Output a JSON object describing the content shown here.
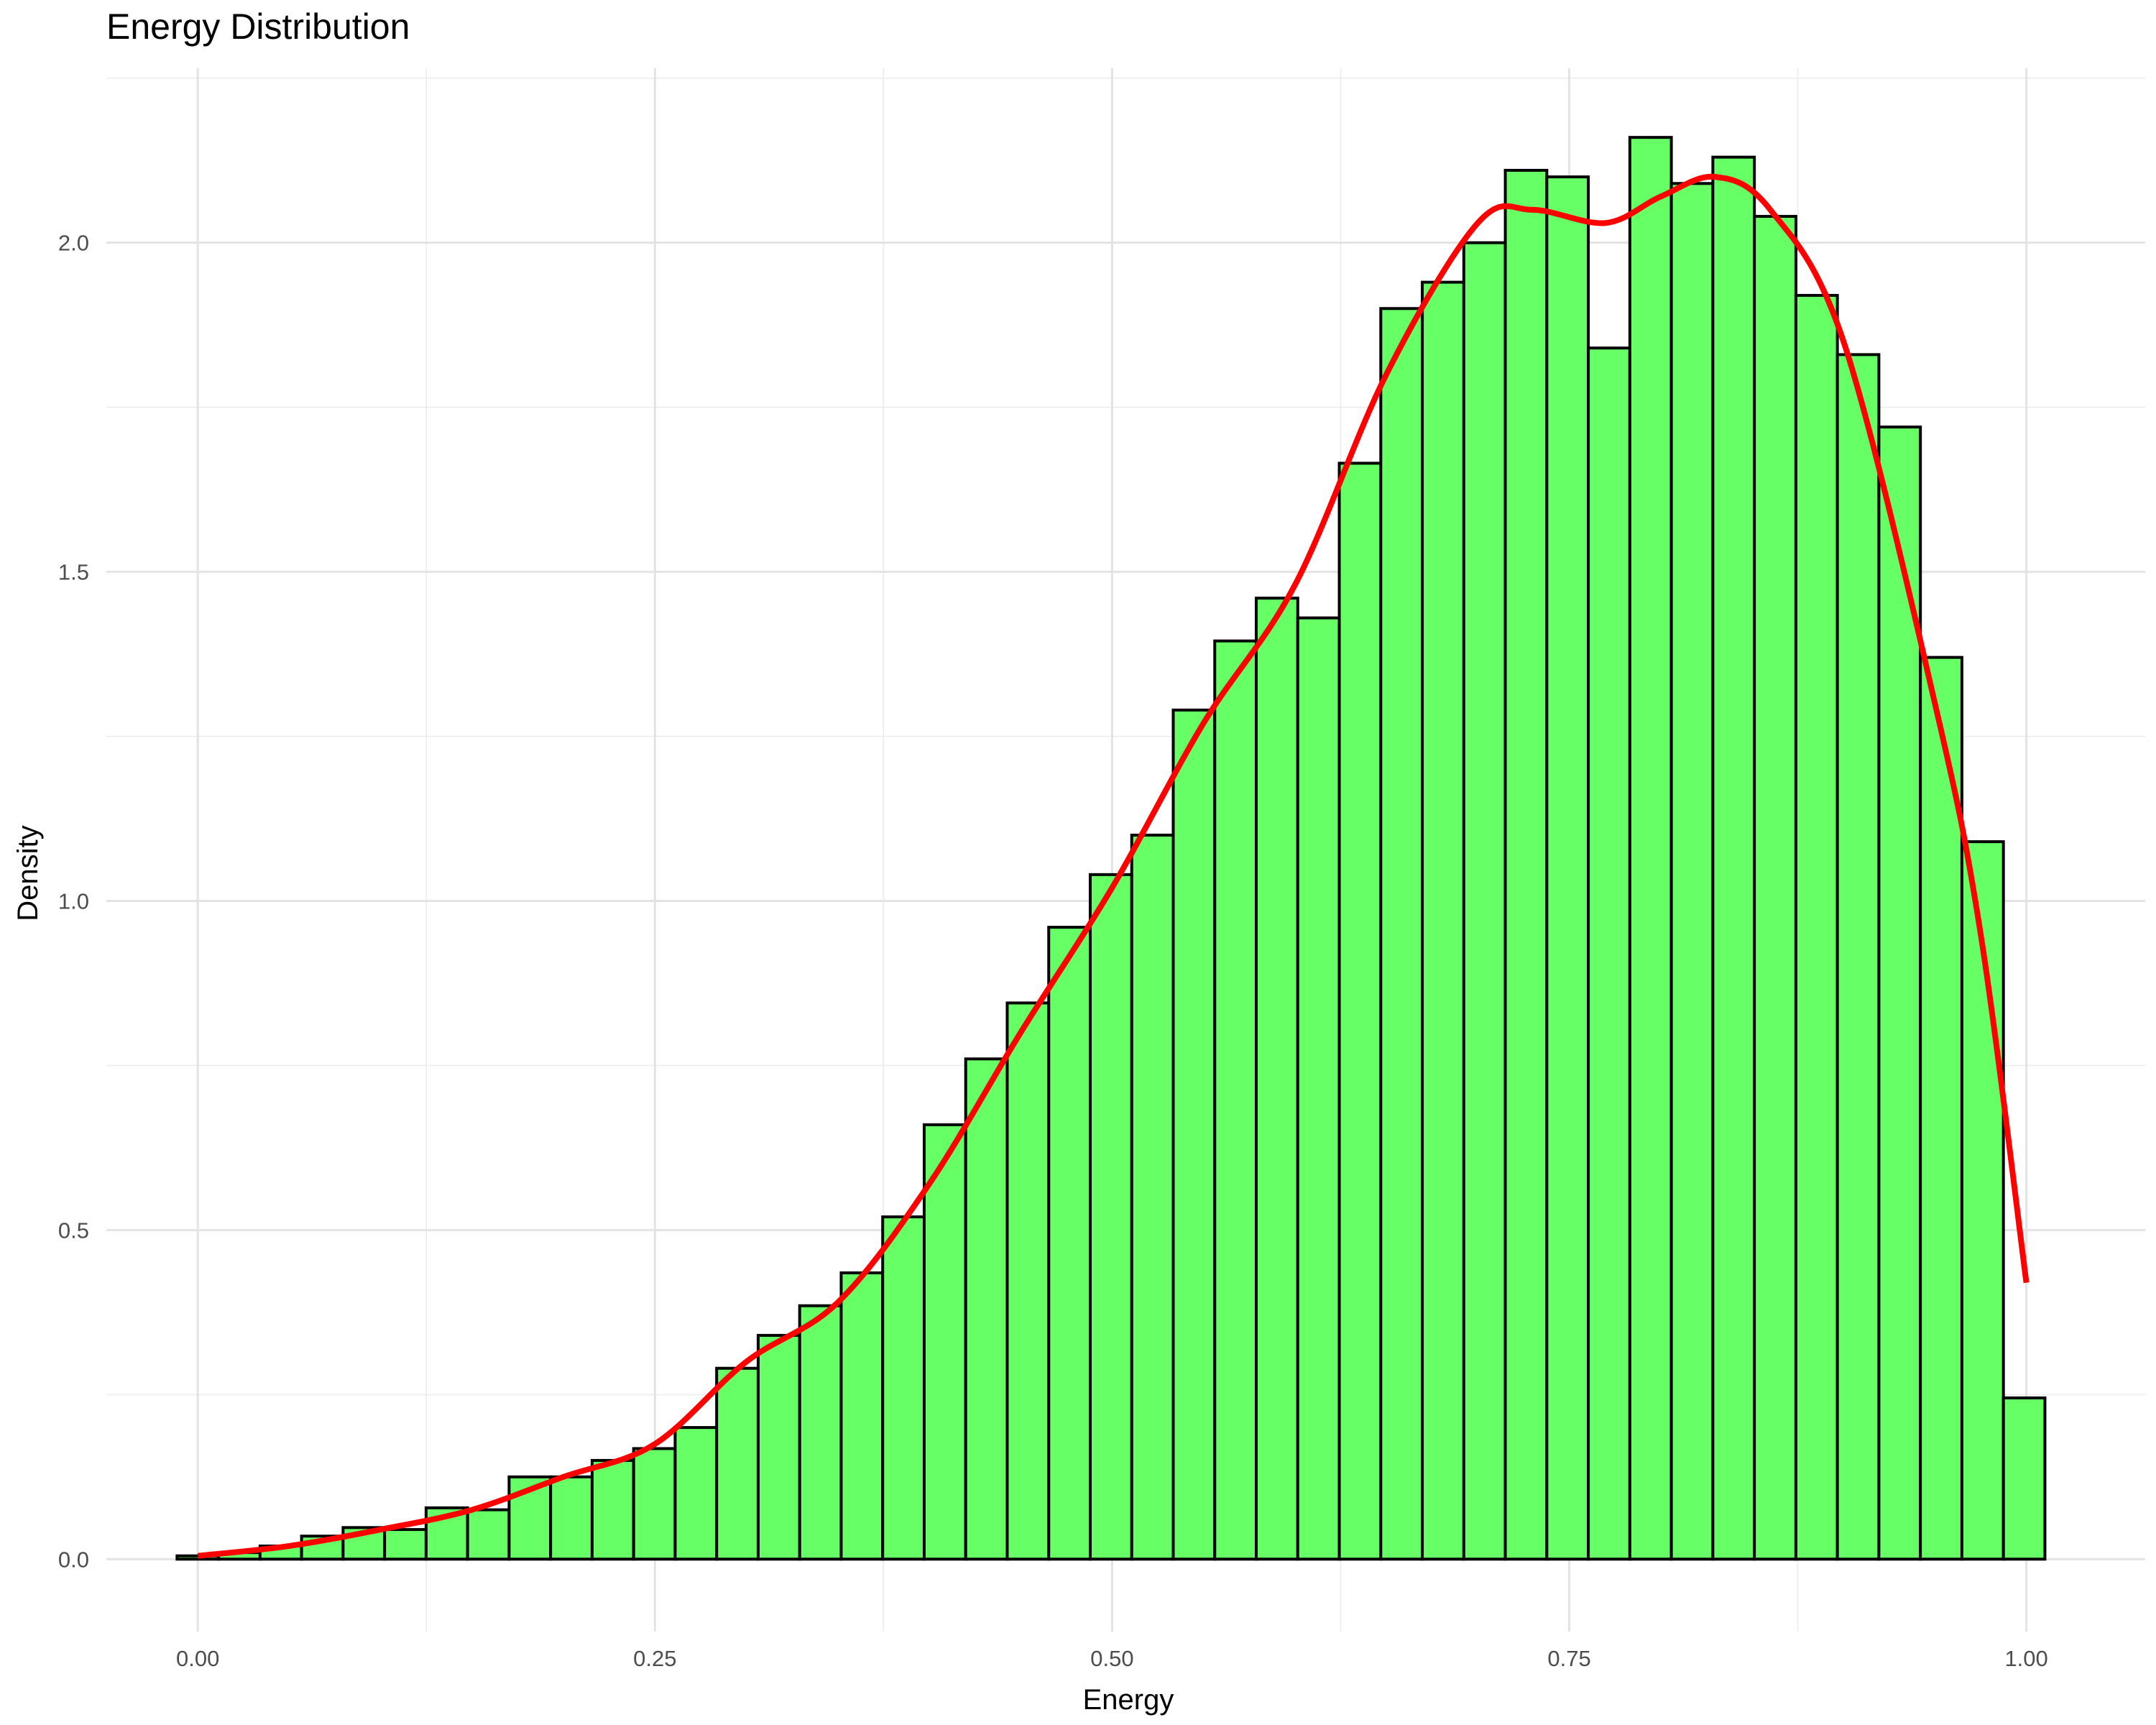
{
  "chart_data": {
    "type": "bar",
    "title": "Energy Distribution",
    "xlabel": "Energy",
    "ylabel": "Density",
    "xlim": [
      -0.05,
      1.065
    ],
    "ylim": [
      -0.11,
      2.265
    ],
    "x_ticks": [
      {
        "value": 0.0,
        "label": "0.00"
      },
      {
        "value": 0.25,
        "label": "0.25"
      },
      {
        "value": 0.5,
        "label": "0.50"
      },
      {
        "value": 0.75,
        "label": "0.75"
      },
      {
        "value": 1.0,
        "label": "1.00"
      }
    ],
    "y_ticks": [
      {
        "value": 0.0,
        "label": "0.0"
      },
      {
        "value": 0.5,
        "label": "0.5"
      },
      {
        "value": 1.0,
        "label": "1.0"
      },
      {
        "value": 1.5,
        "label": "1.5"
      },
      {
        "value": 2.0,
        "label": "2.0"
      }
    ],
    "grid": true,
    "histogram": {
      "first_bin_center": 0.0,
      "bin_width": 0.0227,
      "fill_color": "#66ff66",
      "edge_color": "#000000",
      "values": [
        0.005,
        0.01,
        0.02,
        0.035,
        0.048,
        0.045,
        0.078,
        0.075,
        0.125,
        0.125,
        0.15,
        0.168,
        0.2,
        0.29,
        0.34,
        0.385,
        0.435,
        0.52,
        0.66,
        0.76,
        0.845,
        0.96,
        1.04,
        1.1,
        1.29,
        1.395,
        1.46,
        1.43,
        1.665,
        1.9,
        1.94,
        2.0,
        2.11,
        2.1,
        1.84,
        2.16,
        2.09,
        2.13,
        2.04,
        1.92,
        1.83,
        1.72,
        1.37,
        1.09,
        0.245
      ]
    },
    "density_curve": {
      "color": "#ff0000",
      "x": [
        0.0,
        0.05,
        0.1,
        0.15,
        0.2,
        0.25,
        0.3,
        0.35,
        0.4,
        0.45,
        0.5,
        0.55,
        0.6,
        0.65,
        0.7,
        0.73,
        0.77,
        0.8,
        0.83,
        0.86,
        0.9,
        0.95,
        0.975,
        1.0
      ],
      "y": [
        0.005,
        0.02,
        0.045,
        0.075,
        0.125,
        0.175,
        0.3,
        0.39,
        0.57,
        0.8,
        1.02,
        1.27,
        1.48,
        1.8,
        2.03,
        2.05,
        2.03,
        2.07,
        2.1,
        2.05,
        1.85,
        1.3,
        0.95,
        0.42
      ]
    }
  }
}
